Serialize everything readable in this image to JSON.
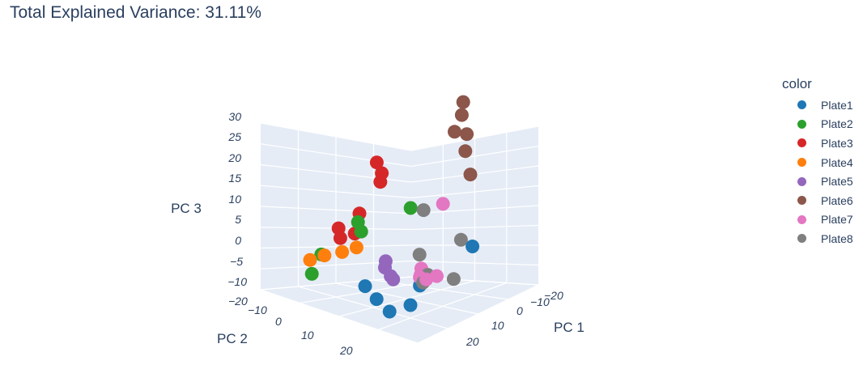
{
  "title": "Total Explained Variance: 31.11%",
  "legend": {
    "title": "color",
    "items": [
      {
        "label": "Plate1",
        "color": "#1f77b4"
      },
      {
        "label": "Plate2",
        "color": "#2ca02c"
      },
      {
        "label": "Plate3",
        "color": "#d62728"
      },
      {
        "label": "Plate4",
        "color": "#ff7f0e"
      },
      {
        "label": "Plate5",
        "color": "#9467bd"
      },
      {
        "label": "Plate6",
        "color": "#8c564b"
      },
      {
        "label": "Plate7",
        "color": "#e377c2"
      },
      {
        "label": "Plate8",
        "color": "#7f7f7f"
      }
    ]
  },
  "chart_data": {
    "type": "scatter3d",
    "title": "Total Explained Variance: 31.11%",
    "axes": {
      "x": {
        "label": "PC 1",
        "ticks": [
          "−20",
          "−10",
          "0",
          "10",
          "20"
        ]
      },
      "y": {
        "label": "PC 2",
        "ticks": [
          "−20",
          "−10",
          "0",
          "10",
          "20"
        ]
      },
      "z": {
        "label": "PC 3",
        "ticks": [
          "−10",
          "−5",
          "0",
          "5",
          "10",
          "15",
          "20",
          "25",
          "30"
        ],
        "range": [
          -10,
          30
        ]
      }
    },
    "background": "#e5ecf6",
    "legend_title": "color",
    "legend_position": "right",
    "series": [
      {
        "name": "Plate1",
        "color": "#1f77b4",
        "points": [
          {
            "pc1": 14,
            "pc2": -4,
            "pc3": 1.5
          },
          {
            "pc1": 10,
            "pc2": 6,
            "pc3": -6
          },
          {
            "pc1": 12,
            "pc2": 10,
            "pc3": -9
          },
          {
            "pc1": 4,
            "pc2": 12,
            "pc3": -9
          },
          {
            "pc1": -2,
            "pc2": 10,
            "pc3": -8
          },
          {
            "pc1": 8,
            "pc2": 12,
            "pc3": -11
          }
        ]
      },
      {
        "name": "Plate2",
        "color": "#2ca02c",
        "points": [
          {
            "pc1": -10,
            "pc2": -8,
            "pc3": 3.5
          },
          {
            "pc1": -14,
            "pc2": 2,
            "pc3": 2
          },
          {
            "pc1": -13,
            "pc2": 2,
            "pc3": 0
          },
          {
            "pc1": -18,
            "pc2": 8,
            "pc3": -5
          },
          {
            "pc1": -16,
            "pc2": 12,
            "pc3": -8
          }
        ]
      },
      {
        "name": "Plate3",
        "color": "#d62728",
        "points": [
          {
            "pc1": -18,
            "pc2": -6,
            "pc3": 13
          },
          {
            "pc1": -14,
            "pc2": -4,
            "pc3": 12
          },
          {
            "pc1": -12,
            "pc2": -2,
            "pc3": 11
          },
          {
            "pc1": -16,
            "pc2": 0,
            "pc3": 3
          },
          {
            "pc1": -20,
            "pc2": 2,
            "pc3": -1
          },
          {
            "pc1": -17,
            "pc2": 4,
            "pc3": -2
          },
          {
            "pc1": -15,
            "pc2": 2,
            "pc3": -1
          }
        ]
      },
      {
        "name": "Plate4",
        "color": "#ff7f0e",
        "points": [
          {
            "pc1": -12,
            "pc2": 4,
            "pc3": -3
          },
          {
            "pc1": -14,
            "pc2": 6,
            "pc3": -4
          },
          {
            "pc1": -17,
            "pc2": 8,
            "pc3": -5
          },
          {
            "pc1": -19,
            "pc2": 10,
            "pc3": -6
          }
        ]
      },
      {
        "name": "Plate5",
        "color": "#9467bd",
        "points": [
          {
            "pc1": -3,
            "pc2": 4,
            "pc3": -4
          },
          {
            "pc1": -2,
            "pc2": 5,
            "pc3": -5
          },
          {
            "pc1": 1,
            "pc2": 6,
            "pc3": -6
          },
          {
            "pc1": 3,
            "pc2": 7,
            "pc3": -6
          }
        ]
      },
      {
        "name": "Plate6",
        "color": "#8c564b",
        "points": [
          {
            "pc1": -6,
            "pc2": -18,
            "pc3": 27
          },
          {
            "pc1": -4,
            "pc2": -16,
            "pc3": 25
          },
          {
            "pc1": -5,
            "pc2": -15,
            "pc3": 21
          },
          {
            "pc1": 0,
            "pc2": -14,
            "pc3": 22
          },
          {
            "pc1": 2,
            "pc2": -12,
            "pc3": 19
          },
          {
            "pc1": 6,
            "pc2": -10,
            "pc3": 15
          }
        ]
      },
      {
        "name": "Plate7",
        "color": "#e377c2",
        "points": [
          {
            "pc1": 0,
            "pc2": -8,
            "pc3": 7
          },
          {
            "pc1": 8,
            "pc2": 4,
            "pc3": -3
          },
          {
            "pc1": 9,
            "pc2": 5,
            "pc3": -4
          },
          {
            "pc1": 10,
            "pc2": 6,
            "pc3": -4
          },
          {
            "pc1": 12,
            "pc2": 6,
            "pc3": -4
          },
          {
            "pc1": 14,
            "pc2": 5,
            "pc3": -3
          }
        ]
      },
      {
        "name": "Plate8",
        "color": "#7f7f7f",
        "points": [
          {
            "pc1": -6,
            "pc2": -8,
            "pc3": 4
          },
          {
            "pc1": 8,
            "pc2": -6,
            "pc3": 1
          },
          {
            "pc1": 5,
            "pc2": 2,
            "pc3": -1
          },
          {
            "pc1": 10,
            "pc2": 4,
            "pc3": -4
          },
          {
            "pc1": 11,
            "pc2": 6,
            "pc3": -5
          },
          {
            "pc1": 18,
            "pc2": 4,
            "pc3": -3
          }
        ]
      }
    ]
  }
}
